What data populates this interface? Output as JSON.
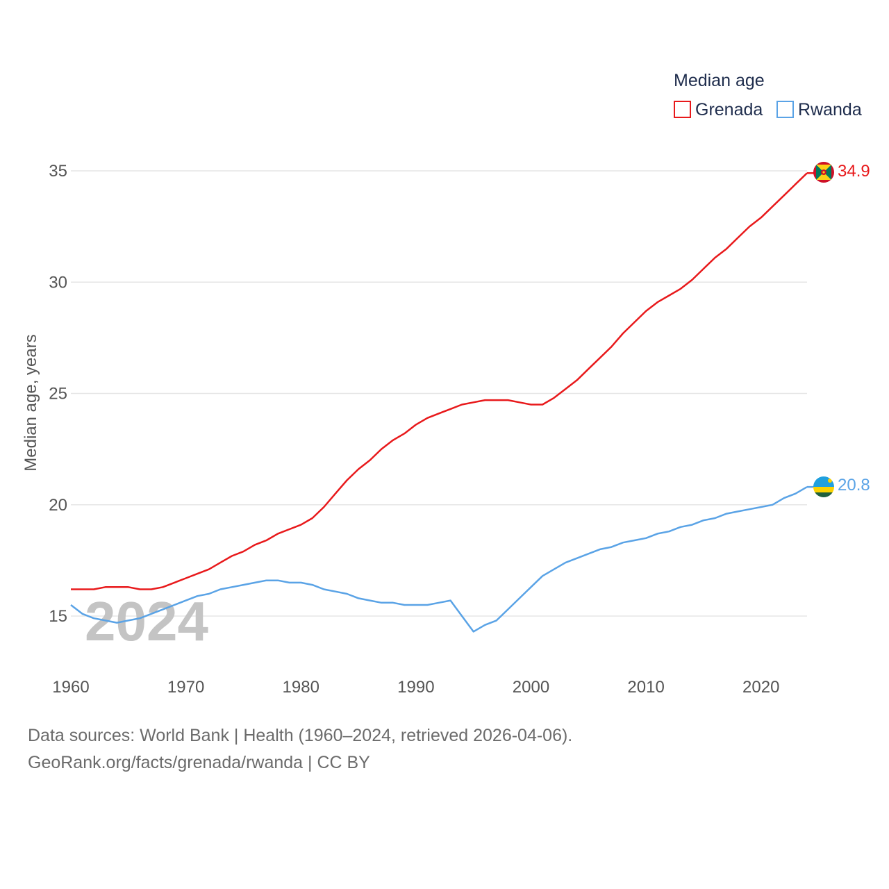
{
  "chart_data": {
    "type": "line",
    "title": "",
    "ylabel": "Median age, years",
    "xlabel": "",
    "ylim": [
      12.5,
      37
    ],
    "xlim": [
      1960,
      2024
    ],
    "yticks": [
      15,
      20,
      25,
      30,
      35
    ],
    "xticks": [
      1960,
      1970,
      1980,
      1990,
      2000,
      2010,
      2020
    ],
    "grid": true,
    "legend_title": "Median age",
    "legend_position": "top-right",
    "year_watermark": "2024",
    "x": [
      1960,
      1961,
      1962,
      1963,
      1964,
      1965,
      1966,
      1967,
      1968,
      1969,
      1970,
      1971,
      1972,
      1973,
      1974,
      1975,
      1976,
      1977,
      1978,
      1979,
      1980,
      1981,
      1982,
      1983,
      1984,
      1985,
      1986,
      1987,
      1988,
      1989,
      1990,
      1991,
      1992,
      1993,
      1994,
      1995,
      1996,
      1997,
      1998,
      1999,
      2000,
      2001,
      2002,
      2003,
      2004,
      2005,
      2006,
      2007,
      2008,
      2009,
      2010,
      2011,
      2012,
      2013,
      2014,
      2015,
      2016,
      2017,
      2018,
      2019,
      2020,
      2021,
      2022,
      2023,
      2024
    ],
    "series": [
      {
        "name": "Grenada",
        "color": "#e8191b",
        "end_label": "34.9",
        "values": [
          16.2,
          16.2,
          16.2,
          16.3,
          16.3,
          16.3,
          16.2,
          16.2,
          16.3,
          16.5,
          16.7,
          16.9,
          17.1,
          17.4,
          17.7,
          17.9,
          18.2,
          18.4,
          18.7,
          18.9,
          19.1,
          19.4,
          19.9,
          20.5,
          21.1,
          21.6,
          22.0,
          22.5,
          22.9,
          23.2,
          23.6,
          23.9,
          24.1,
          24.3,
          24.5,
          24.6,
          24.7,
          24.7,
          24.7,
          24.6,
          24.5,
          24.5,
          24.8,
          25.2,
          25.6,
          26.1,
          26.6,
          27.1,
          27.7,
          28.2,
          28.7,
          29.1,
          29.4,
          29.7,
          30.1,
          30.6,
          31.1,
          31.5,
          32.0,
          32.5,
          32.9,
          33.4,
          33.9,
          34.4,
          34.9
        ]
      },
      {
        "name": "Rwanda",
        "color": "#5aa3e6",
        "end_label": "20.8",
        "values": [
          15.5,
          15.1,
          14.9,
          14.8,
          14.7,
          14.8,
          14.9,
          15.1,
          15.3,
          15.5,
          15.7,
          15.9,
          16.0,
          16.2,
          16.3,
          16.4,
          16.5,
          16.6,
          16.6,
          16.5,
          16.5,
          16.4,
          16.2,
          16.1,
          16.0,
          15.8,
          15.7,
          15.6,
          15.6,
          15.5,
          15.5,
          15.5,
          15.6,
          15.7,
          15.0,
          14.3,
          14.6,
          14.8,
          15.3,
          15.8,
          16.3,
          16.8,
          17.1,
          17.4,
          17.6,
          17.8,
          18.0,
          18.1,
          18.3,
          18.4,
          18.5,
          18.7,
          18.8,
          19.0,
          19.1,
          19.3,
          19.4,
          19.6,
          19.7,
          19.8,
          19.9,
          20.0,
          20.3,
          20.5,
          20.8
        ]
      }
    ]
  },
  "footer": {
    "line1": "Data sources: World Bank | Health (1960–2024, retrieved 2026-04-06).",
    "line2": "GeoRank.org/facts/grenada/rwanda | CC BY"
  }
}
